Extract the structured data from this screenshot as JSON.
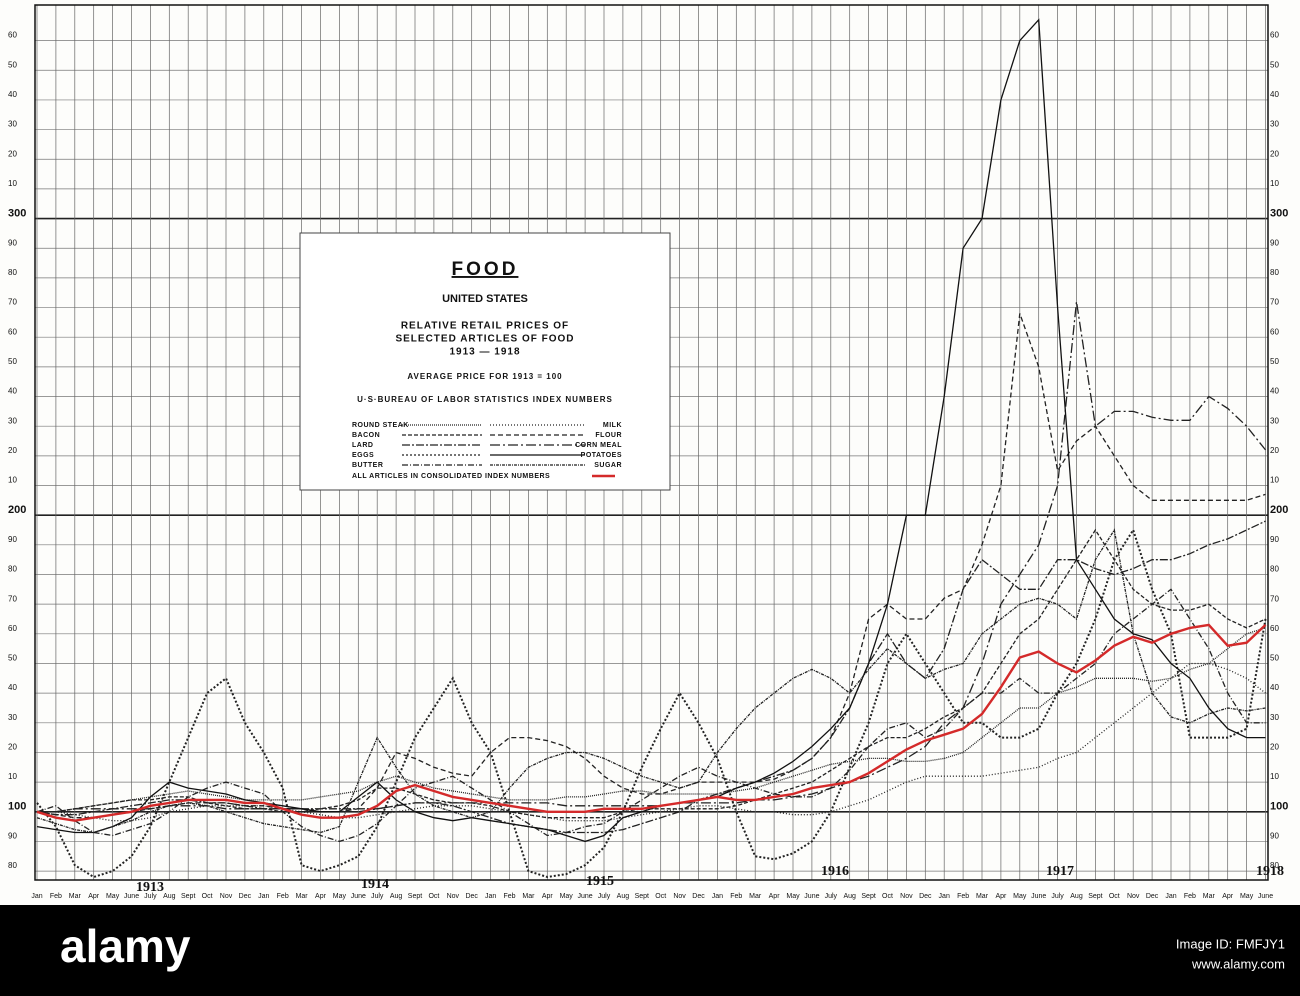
{
  "chart_data": {
    "type": "line",
    "title": "FOOD",
    "subtitle": "UNITED STATES",
    "description": [
      "RELATIVE RETAIL PRICES OF",
      "SELECTED ARTICLES OF FOOD",
      "1913 — 1918"
    ],
    "note": "AVERAGE PRICE FOR 1913 = 100",
    "source": "U·S·BUREAU OF LABOR STATISTICS INDEX NUMBERS",
    "categories": [
      "Jan",
      "Feb",
      "Mar",
      "Apr",
      "May",
      "June",
      "July",
      "Aug",
      "Sept",
      "Oct",
      "Nov",
      "Dec",
      "Jan",
      "Feb",
      "Mar",
      "Apr",
      "May",
      "June",
      "July",
      "Aug",
      "Sept",
      "Oct",
      "Nov",
      "Dec",
      "Jan",
      "Feb",
      "Mar",
      "Apr",
      "May",
      "June",
      "July",
      "Aug",
      "Sept",
      "Oct",
      "Nov",
      "Dec",
      "Jan",
      "Feb",
      "Mar",
      "Apr",
      "May",
      "June",
      "July",
      "Aug",
      "Sept",
      "Oct",
      "Nov",
      "Dec",
      "Jan",
      "Feb",
      "Mar",
      "Apr",
      "May",
      "June",
      "July",
      "Aug",
      "Sept",
      "Oct",
      "Nov",
      "Dec",
      "Jan",
      "Feb",
      "Mar",
      "Apr",
      "May",
      "June"
    ],
    "year_labels": [
      "1913",
      "1914",
      "1915",
      "1916",
      "1917",
      "1918"
    ],
    "ylim": [
      77,
      372
    ],
    "yticks": [
      80,
      90,
      100,
      {
        "value": 110,
        "label": "10"
      },
      {
        "value": 120,
        "label": "20"
      },
      {
        "value": 130,
        "label": "30"
      },
      {
        "value": 140,
        "label": "40"
      },
      {
        "value": 150,
        "label": "50"
      },
      {
        "value": 160,
        "label": "60"
      },
      {
        "value": 170,
        "label": "70"
      },
      {
        "value": 180,
        "label": "80"
      },
      {
        "value": 190,
        "label": "90"
      },
      200,
      {
        "value": 210,
        "label": "10"
      },
      {
        "value": 220,
        "label": "20"
      },
      {
        "value": 230,
        "label": "30"
      },
      {
        "value": 240,
        "label": "40"
      },
      {
        "value": 250,
        "label": "50"
      },
      {
        "value": 260,
        "label": "60"
      },
      {
        "value": 270,
        "label": "70"
      },
      {
        "value": 280,
        "label": "80"
      },
      {
        "value": 290,
        "label": "90"
      },
      300,
      {
        "value": 310,
        "label": "10"
      },
      {
        "value": 320,
        "label": "20"
      },
      {
        "value": 330,
        "label": "30"
      },
      {
        "value": 340,
        "label": "40"
      },
      {
        "value": 350,
        "label": "50"
      },
      {
        "value": 360,
        "label": "60"
      }
    ],
    "grid": true,
    "series": [
      {
        "name": "ROUND STEAK",
        "color": "#222",
        "dash": "1 1",
        "values": [
          100,
          100,
          101,
          102,
          103,
          104,
          105,
          106,
          107,
          106,
          105,
          104,
          104,
          104,
          104,
          105,
          106,
          107,
          110,
          112,
          110,
          108,
          107,
          106,
          105,
          104,
          104,
          104,
          105,
          105,
          106,
          107,
          107,
          106,
          106,
          106,
          106,
          107,
          108,
          110,
          112,
          114,
          116,
          117,
          118,
          118,
          117,
          117,
          118,
          120,
          125,
          130,
          135,
          135,
          140,
          142,
          145,
          145,
          145,
          144,
          145,
          148,
          150,
          155,
          160,
          162
        ]
      },
      {
        "name": "BACON",
        "color": "#222",
        "dash": "4 2",
        "values": [
          100,
          100,
          101,
          102,
          103,
          104,
          104,
          105,
          105,
          103,
          102,
          101,
          101,
          100,
          100,
          101,
          102,
          104,
          108,
          108,
          106,
          104,
          103,
          103,
          102,
          100,
          99,
          98,
          98,
          98,
          98,
          100,
          101,
          101,
          101,
          101,
          101,
          102,
          104,
          106,
          108,
          110,
          114,
          118,
          122,
          125,
          125,
          128,
          132,
          135,
          140,
          150,
          160,
          165,
          175,
          185,
          195,
          185,
          175,
          170,
          168,
          168,
          170,
          165,
          162,
          165
        ]
      },
      {
        "name": "LARD",
        "color": "#222",
        "dash": "8 2 2 2",
        "values": [
          100,
          99,
          99,
          100,
          101,
          102,
          103,
          104,
          104,
          103,
          103,
          102,
          101,
          101,
          101,
          101,
          101,
          101,
          101,
          102,
          103,
          103,
          102,
          100,
          98,
          96,
          95,
          94,
          93,
          93,
          93,
          94,
          96,
          98,
          100,
          104,
          106,
          108,
          110,
          112,
          114,
          118,
          125,
          135,
          150,
          160,
          150,
          145,
          155,
          175,
          185,
          180,
          175,
          175,
          185,
          185,
          182,
          180,
          182,
          185,
          185,
          187,
          190,
          192,
          195,
          198
        ]
      },
      {
        "name": "EGGS",
        "color": "#222",
        "dash": "2 2",
        "values": [
          103,
          95,
          82,
          78,
          80,
          85,
          95,
          110,
          125,
          140,
          145,
          130,
          120,
          108,
          82,
          80,
          82,
          85,
          95,
          110,
          125,
          135,
          145,
          130,
          120,
          100,
          80,
          78,
          79,
          82,
          88,
          100,
          115,
          128,
          140,
          130,
          118,
          100,
          85,
          84,
          86,
          90,
          100,
          115,
          130,
          150,
          160,
          150,
          140,
          130,
          130,
          125,
          125,
          128,
          140,
          150,
          165,
          185,
          195,
          175,
          160,
          125,
          125,
          125,
          128,
          165
        ]
      },
      {
        "name": "BUTTER",
        "color": "#222",
        "dash": "6 2 1 2",
        "values": [
          100,
          102,
          97,
          93,
          92,
          94,
          96,
          100,
          105,
          108,
          110,
          108,
          106,
          100,
          95,
          92,
          90,
          92,
          96,
          102,
          108,
          110,
          112,
          108,
          104,
          100,
          96,
          92,
          93,
          95,
          96,
          100,
          104,
          108,
          112,
          115,
          112,
          110,
          108,
          106,
          105,
          105,
          108,
          114,
          122,
          128,
          130,
          125,
          128,
          135,
          140,
          140,
          145,
          140,
          140,
          145,
          150,
          160,
          165,
          170,
          175,
          165,
          155,
          140,
          130,
          130
        ]
      },
      {
        "name": "MILK",
        "color": "#222",
        "dash": "1 2",
        "values": [
          100,
          100,
          99,
          98,
          97,
          97,
          98,
          100,
          101,
          102,
          102,
          102,
          102,
          101,
          100,
          99,
          98,
          98,
          99,
          100,
          101,
          102,
          102,
          102,
          101,
          100,
          99,
          98,
          97,
          97,
          97,
          98,
          99,
          100,
          101,
          102,
          102,
          101,
          100,
          100,
          99,
          99,
          100,
          102,
          104,
          107,
          110,
          112,
          112,
          112,
          112,
          113,
          114,
          115,
          118,
          120,
          125,
          130,
          135,
          140,
          145,
          150,
          150,
          148,
          145,
          140
        ]
      },
      {
        "name": "FLOUR",
        "color": "#222",
        "dash": "5 3",
        "values": [
          100,
          99,
          98,
          98,
          99,
          100,
          101,
          102,
          103,
          103,
          103,
          102,
          102,
          101,
          101,
          100,
          100,
          101,
          108,
          120,
          118,
          115,
          113,
          112,
          120,
          125,
          125,
          124,
          122,
          118,
          112,
          108,
          106,
          106,
          108,
          110,
          110,
          110,
          110,
          111,
          114,
          118,
          125,
          140,
          165,
          170,
          165,
          165,
          172,
          175,
          190,
          210,
          268,
          250,
          215,
          225,
          230,
          220,
          210,
          205,
          205,
          205,
          205,
          205,
          205,
          207
        ]
      },
      {
        "name": "CORN MEAL",
        "color": "#222",
        "dash": "10 3 2 3",
        "values": [
          100,
          100,
          101,
          101,
          101,
          101,
          101,
          102,
          102,
          102,
          101,
          101,
          101,
          101,
          101,
          100,
          100,
          100,
          101,
          102,
          103,
          103,
          103,
          103,
          103,
          103,
          103,
          103,
          102,
          102,
          102,
          102,
          102,
          102,
          103,
          103,
          103,
          103,
          104,
          104,
          105,
          106,
          108,
          110,
          112,
          115,
          118,
          122,
          130,
          135,
          150,
          170,
          180,
          190,
          210,
          272,
          230,
          235,
          235,
          233,
          232,
          232,
          240,
          236,
          230,
          222
        ]
      },
      {
        "name": "POTATOES",
        "color": "#111",
        "dash": "none",
        "values": [
          95,
          94,
          93,
          93,
          95,
          98,
          105,
          110,
          108,
          107,
          106,
          104,
          103,
          102,
          101,
          100,
          100,
          105,
          110,
          104,
          100,
          98,
          97,
          98,
          97,
          96,
          95,
          94,
          92,
          90,
          92,
          98,
          100,
          102,
          103,
          104,
          105,
          108,
          110,
          113,
          117,
          122,
          128,
          135,
          150,
          170,
          200,
          200,
          240,
          290,
          300,
          340,
          360,
          367,
          270,
          185,
          175,
          165,
          160,
          158,
          150,
          145,
          135,
          128,
          125,
          125
        ]
      },
      {
        "name": "SUGAR",
        "color": "#222",
        "dash": "3 1 1 1",
        "values": [
          98,
          96,
          94,
          93,
          95,
          97,
          100,
          102,
          103,
          102,
          100,
          98,
          96,
          95,
          94,
          93,
          95,
          110,
          125,
          115,
          106,
          102,
          100,
          98,
          100,
          108,
          115,
          118,
          120,
          120,
          118,
          115,
          112,
          110,
          108,
          110,
          120,
          128,
          135,
          140,
          145,
          148,
          145,
          140,
          148,
          155,
          150,
          145,
          148,
          150,
          160,
          165,
          170,
          172,
          170,
          165,
          185,
          195,
          160,
          140,
          132,
          130,
          133,
          135,
          134,
          135
        ]
      },
      {
        "name": "ALL ARTICLES IN CONSOLIDATED INDEX NUMBERS",
        "color": "#d42a2a",
        "dash": "none",
        "values": [
          100,
          98,
          97,
          98,
          99,
          100,
          102,
          103,
          104,
          104,
          104,
          103,
          103,
          101,
          99,
          98,
          98,
          99,
          102,
          107,
          109,
          107,
          105,
          104,
          103,
          102,
          101,
          100,
          100,
          100,
          101,
          101,
          101,
          102,
          103,
          104,
          105,
          104,
          104,
          105,
          106,
          108,
          109,
          110,
          113,
          117,
          121,
          124,
          126,
          128,
          133,
          142,
          152,
          154,
          150,
          147,
          151,
          156,
          159,
          157,
          160,
          162,
          163,
          156,
          157,
          163
        ]
      }
    ]
  },
  "watermark": {
    "brand": "alamy",
    "image_id": "Image ID: FMFJY1",
    "site": "www.alamy.com"
  }
}
